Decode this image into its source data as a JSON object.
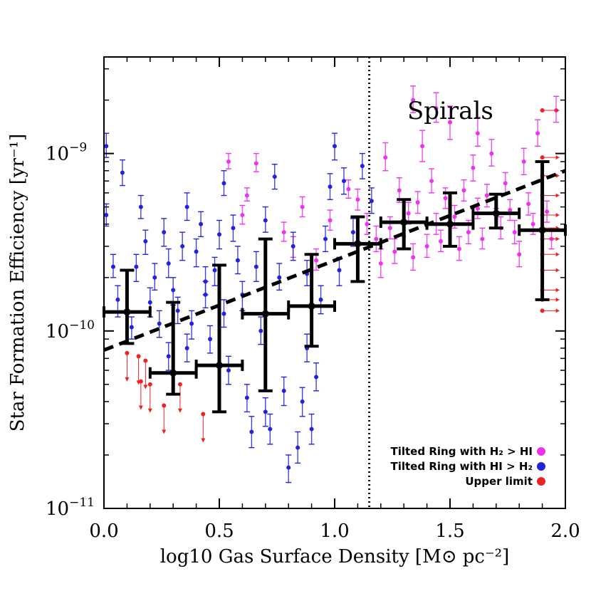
{
  "chart_data": {
    "type": "scatter",
    "title": "",
    "xlabel": "log10 Gas Surface Density [M⊙ pc⁻²]",
    "ylabel": "Star Formation Efficiency [yr⁻¹]",
    "xlim": [
      0.0,
      2.0
    ],
    "ylim": [
      1e-11,
      3.5e-09
    ],
    "yscale": "log",
    "x_ticks": [
      {
        "v": 0.0,
        "label": "0.0"
      },
      {
        "v": 0.5,
        "label": "0.5"
      },
      {
        "v": 1.0,
        "label": "1.0"
      },
      {
        "v": 1.5,
        "label": "1.5"
      },
      {
        "v": 2.0,
        "label": "2.0"
      }
    ],
    "y_ticks": [
      {
        "v": 1e-11,
        "base": "10",
        "exp": "−11"
      },
      {
        "v": 1e-10,
        "base": "10",
        "exp": "−10"
      },
      {
        "v": 1e-09,
        "base": "10",
        "exp": "−9"
      }
    ],
    "annotation": "Spirals",
    "vline_x": 1.15,
    "fit_line": {
      "x": [
        0.0,
        2.0
      ],
      "y": [
        7.8e-11,
        8e-10
      ]
    },
    "binned_means": [
      {
        "x": 0.1,
        "y": 1.28e-10,
        "xerr": 0.1,
        "ylo": 8.5e-11,
        "yhi": 2.2e-10
      },
      {
        "x": 0.3,
        "y": 5.8e-11,
        "xerr": 0.1,
        "ylo": 4.4e-11,
        "yhi": 1.45e-10
      },
      {
        "x": 0.5,
        "y": 6.4e-11,
        "xerr": 0.1,
        "ylo": 3.5e-11,
        "yhi": 2.35e-10
      },
      {
        "x": 0.7,
        "y": 1.25e-10,
        "xerr": 0.1,
        "ylo": 4.6e-11,
        "yhi": 3.3e-10
      },
      {
        "x": 0.9,
        "y": 1.38e-10,
        "xerr": 0.1,
        "ylo": 8.2e-11,
        "yhi": 2.7e-10
      },
      {
        "x": 1.1,
        "y": 3.1e-10,
        "xerr": 0.1,
        "ylo": 1.9e-10,
        "yhi": 4.4e-10
      },
      {
        "x": 1.3,
        "y": 4.1e-10,
        "xerr": 0.1,
        "ylo": 2.9e-10,
        "yhi": 5.5e-10
      },
      {
        "x": 1.5,
        "y": 4e-10,
        "xerr": 0.1,
        "ylo": 3e-10,
        "yhi": 6e-10
      },
      {
        "x": 1.7,
        "y": 4.6e-10,
        "xerr": 0.1,
        "ylo": 3.8e-10,
        "yhi": 5.9e-10
      },
      {
        "x": 1.9,
        "y": 3.7e-10,
        "xerr": 0.1,
        "ylo": 1.5e-10,
        "yhi": 9e-10
      }
    ],
    "series": [
      {
        "name": "Tilted Ring with H₂ > HI",
        "color": "#ee33ee",
        "points": [
          [
            0.54,
            9e-10,
            8.2e-10,
            1e-09
          ],
          [
            0.62,
            5.8e-10,
            5.4e-10,
            6.4e-10
          ],
          [
            0.6,
            4.5e-10,
            4e-10,
            5.1e-10
          ],
          [
            0.66,
            8.8e-10,
            7.9e-10,
            1e-09
          ],
          [
            0.78,
            3.6e-10,
            3.2e-10,
            4.1e-10
          ],
          [
            0.82,
            3e-10,
            2.6e-10,
            3.4e-10
          ],
          [
            0.86,
            5e-10,
            4.4e-10,
            5.7e-10
          ],
          [
            0.92,
            2.5e-10,
            2.2e-10,
            2.9e-10
          ],
          [
            0.98,
            4.2e-10,
            3.7e-10,
            4.8e-10
          ],
          [
            1.06,
            6.3e-10,
            5.6e-10,
            7.1e-10
          ],
          [
            1.1,
            5.5e-10,
            4.8e-10,
            6.3e-10
          ],
          [
            1.14,
            4e-10,
            3.5e-10,
            4.6e-10
          ],
          [
            1.18,
            3.3e-10,
            2.8e-10,
            3.9e-10
          ],
          [
            1.2,
            2.4e-10,
            2e-10,
            2.9e-10
          ],
          [
            1.22,
            9.5e-10,
            8e-10,
            1.15e-09
          ],
          [
            1.24,
            3.8e-10,
            3.3e-10,
            4.4e-10
          ],
          [
            1.26,
            2.8e-10,
            2.4e-10,
            3.3e-10
          ],
          [
            1.28,
            6.2e-10,
            5.3e-10,
            7.3e-10
          ],
          [
            1.3,
            3.4e-10,
            2.9e-10,
            4e-10
          ],
          [
            1.32,
            4.6e-10,
            4e-10,
            5.3e-10
          ],
          [
            1.34,
            2.6e-10,
            2.2e-10,
            3.1e-10
          ],
          [
            1.36,
            5.3e-10,
            4.6e-10,
            6.1e-10
          ],
          [
            1.38,
            1.1e-09,
            9e-10,
            1.35e-09
          ],
          [
            1.4,
            3e-10,
            2.6e-10,
            3.5e-10
          ],
          [
            1.42,
            7e-10,
            6e-10,
            8.2e-10
          ],
          [
            1.44,
            4e-10,
            3.5e-10,
            4.6e-10
          ],
          [
            1.46,
            3.2e-10,
            2.8e-10,
            3.7e-10
          ],
          [
            1.48,
            5.6e-10,
            4.9e-10,
            6.4e-10
          ],
          [
            1.5,
            1.5e-09,
            1.2e-09,
            1.85e-09
          ],
          [
            1.52,
            4.4e-10,
            3.8e-10,
            5.1e-10
          ],
          [
            1.54,
            2.9e-10,
            2.5e-10,
            3.4e-10
          ],
          [
            1.56,
            6.2e-10,
            5.4e-10,
            7.1e-10
          ],
          [
            1.58,
            3.6e-10,
            3.1e-10,
            4.2e-10
          ],
          [
            1.6,
            8.3e-10,
            7e-10,
            9.8e-10
          ],
          [
            1.62,
            4.9e-10,
            4.3e-10,
            5.6e-10
          ],
          [
            1.64,
            3.3e-10,
            2.9e-10,
            3.8e-10
          ],
          [
            1.66,
            5.8e-10,
            5e-10,
            6.7e-10
          ],
          [
            1.68,
            1e-09,
            8.5e-10,
            1.2e-09
          ],
          [
            1.7,
            4.3e-10,
            3.8e-10,
            4.9e-10
          ],
          [
            1.72,
            3.8e-10,
            3.3e-10,
            4.4e-10
          ],
          [
            1.74,
            6.8e-10,
            5.9e-10,
            7.8e-10
          ],
          [
            1.76,
            4.8e-10,
            4.2e-10,
            5.5e-10
          ],
          [
            1.78,
            3.6e-10,
            3.1e-10,
            4.2e-10
          ],
          [
            1.8,
            2.7e-10,
            2.3e-10,
            3.2e-10
          ],
          [
            1.82,
            9e-10,
            7.6e-10,
            1.07e-09
          ],
          [
            1.84,
            5.2e-10,
            4.5e-10,
            6e-10
          ],
          [
            1.86,
            4e-10,
            3.5e-10,
            4.6e-10
          ],
          [
            1.88,
            1.3e-09,
            1.1e-09,
            1.55e-09
          ],
          [
            1.92,
            4.7e-10,
            4.1e-10,
            5.4e-10
          ],
          [
            1.94,
            3.3e-10,
            2.9e-10,
            3.8e-10
          ],
          [
            1.96,
            1.75e-09,
            1.5e-09,
            2.1e-09
          ],
          [
            1.34,
            2e-09,
            1.7e-09,
            2.4e-09
          ],
          [
            1.44,
            1.8e-09,
            1.5e-09,
            2.2e-09
          ],
          [
            1.62,
            1.3e-09,
            1.1e-09,
            1.6e-09
          ]
        ]
      },
      {
        "name": "Tilted Ring with HI > H₂",
        "color": "#2222dd",
        "points": [
          [
            0.01,
            1.1e-09,
            9.5e-10,
            1.3e-09
          ],
          [
            0.01,
            4.5e-10,
            3.9e-10,
            5.2e-10
          ],
          [
            0.04,
            2.3e-10,
            2e-10,
            2.7e-10
          ],
          [
            0.06,
            1.5e-10,
            1.2e-10,
            1.8e-10
          ],
          [
            0.08,
            7.8e-10,
            6.6e-10,
            9.2e-10
          ],
          [
            0.12,
            1.05e-10,
            9e-11,
            1.2e-10
          ],
          [
            0.14,
            2.3e-10,
            1.9e-10,
            2.7e-10
          ],
          [
            0.16,
            5e-10,
            4.3e-10,
            5.8e-10
          ],
          [
            0.18,
            3.2e-10,
            2.7e-10,
            3.7e-10
          ],
          [
            0.2,
            1.45e-10,
            1.2e-10,
            1.75e-10
          ],
          [
            0.22,
            2e-10,
            1.7e-10,
            2.4e-10
          ],
          [
            0.24,
            1.1e-10,
            9.2e-11,
            1.3e-10
          ],
          [
            0.26,
            3.6e-10,
            3e-10,
            4.3e-10
          ],
          [
            0.28,
            2.4e-10,
            2e-10,
            2.9e-10
          ],
          [
            0.3,
            1.7e-10,
            1.4e-10,
            2e-10
          ],
          [
            0.32,
            1.3e-10,
            1.1e-10,
            1.55e-10
          ],
          [
            0.34,
            3e-10,
            2.5e-10,
            3.6e-10
          ],
          [
            0.36,
            5e-10,
            4.2e-10,
            6e-10
          ],
          [
            0.38,
            1.1e-10,
            9e-11,
            1.3e-10
          ],
          [
            0.4,
            2.8e-10,
            2.3e-10,
            3.3e-10
          ],
          [
            0.42,
            4e-10,
            3.4e-10,
            4.7e-10
          ],
          [
            0.44,
            1.6e-10,
            1.35e-10,
            1.9e-10
          ],
          [
            0.46,
            9e-11,
            7.5e-11,
            1.07e-10
          ],
          [
            0.48,
            2.2e-10,
            1.8e-10,
            2.6e-10
          ],
          [
            0.5,
            3.5e-10,
            2.9e-10,
            4.2e-10
          ],
          [
            0.52,
            1.25e-10,
            1.05e-10,
            1.5e-10
          ],
          [
            0.54,
            6e-11,
            5e-11,
            7.2e-11
          ],
          [
            0.56,
            3.8e-10,
            3.2e-10,
            4.5e-10
          ],
          [
            0.58,
            2.5e-10,
            2.1e-10,
            3e-10
          ],
          [
            0.6,
            1.6e-10,
            1.3e-10,
            1.9e-10
          ],
          [
            0.62,
            4.2e-11,
            3.5e-11,
            5e-11
          ],
          [
            0.64,
            2.7e-11,
            2.2e-11,
            3.3e-11
          ],
          [
            0.66,
            2.3e-10,
            1.9e-10,
            2.8e-10
          ],
          [
            0.68,
            1e-10,
            8.4e-11,
            1.2e-10
          ],
          [
            0.7,
            3.5e-11,
            2.9e-11,
            4.2e-11
          ],
          [
            0.72,
            2.8e-11,
            2.3e-11,
            3.4e-11
          ],
          [
            0.74,
            7.4e-10,
            6.3e-10,
            8.7e-10
          ],
          [
            0.76,
            2e-10,
            1.7e-10,
            2.4e-10
          ],
          [
            0.78,
            4.6e-11,
            3.8e-11,
            5.5e-11
          ],
          [
            0.8,
            1.7e-11,
            1.4e-11,
            2e-11
          ],
          [
            0.82,
            3e-10,
            2.5e-10,
            3.6e-10
          ],
          [
            0.84,
            2.2e-11,
            1.8e-11,
            2.7e-11
          ],
          [
            0.86,
            4e-11,
            3.3e-11,
            4.8e-11
          ],
          [
            0.88,
            8e-11,
            6.7e-11,
            9.6e-11
          ],
          [
            0.9,
            2.8e-11,
            2.3e-11,
            3.4e-11
          ],
          [
            0.92,
            5.5e-11,
            4.6e-11,
            6.6e-11
          ],
          [
            0.94,
            1.5e-10,
            1.25e-10,
            1.8e-10
          ],
          [
            0.96,
            3.3e-10,
            2.8e-10,
            3.9e-10
          ],
          [
            0.98,
            6.5e-10,
            5.5e-10,
            7.7e-10
          ],
          [
            1.0,
            1.1e-09,
            9.2e-10,
            1.3e-09
          ],
          [
            1.02,
            2.2e-10,
            1.8e-10,
            2.6e-10
          ],
          [
            1.04,
            7e-10,
            5.9e-10,
            8.3e-10
          ],
          [
            1.08,
            3.6e-10,
            3e-10,
            4.3e-10
          ],
          [
            1.12,
            8.5e-10,
            7.2e-10,
            1e-09
          ],
          [
            1.16,
            5.4e-10,
            4.6e-10,
            6.4e-10
          ],
          [
            0.88,
            2.1e-10,
            1.8e-10,
            2.5e-10
          ],
          [
            0.7,
            4.2e-10,
            3.6e-10,
            5e-10
          ],
          [
            0.52,
            6.8e-10,
            5.8e-10,
            8e-10
          ],
          [
            0.44,
            1.9e-10,
            1.6e-10,
            2.3e-10
          ],
          [
            0.36,
            8e-11,
            6.7e-11,
            9.6e-11
          ],
          [
            0.28,
            7.2e-11,
            6e-11,
            8.6e-11
          ]
        ]
      }
    ],
    "upper_limits": {
      "name": "Upper limit",
      "color": "#ee2222",
      "points": [
        [
          0.1,
          7.5e-11
        ],
        [
          0.15,
          7.2e-11
        ],
        [
          0.18,
          6.8e-11
        ],
        [
          0.16,
          5.2e-11
        ],
        [
          0.2,
          5e-11
        ],
        [
          0.26,
          3.8e-11
        ],
        [
          0.33,
          5e-11
        ],
        [
          0.43,
          3.4e-11
        ],
        [
          1.9,
          1.75e-09
        ],
        [
          1.9,
          9.5e-10
        ],
        [
          1.9,
          7.5e-10
        ],
        [
          1.9,
          5.8e-10
        ],
        [
          1.9,
          4.5e-10
        ],
        [
          1.9,
          3.8e-10
        ],
        [
          1.9,
          3.3e-10
        ],
        [
          1.9,
          2.7e-10
        ],
        [
          1.9,
          2.2e-10
        ],
        [
          1.9,
          1.7e-10
        ],
        [
          1.9,
          1.5e-10
        ],
        [
          1.9,
          1.3e-10
        ]
      ]
    },
    "legend": {
      "placement": "bottom-right",
      "entries": [
        {
          "label": "Tilted Ring with H₂ > HI",
          "color": "#ee33ee"
        },
        {
          "label": "Tilted Ring with HI > H₂",
          "color": "#2222dd"
        },
        {
          "label": "Upper limit",
          "color": "#ee2222"
        }
      ]
    }
  }
}
